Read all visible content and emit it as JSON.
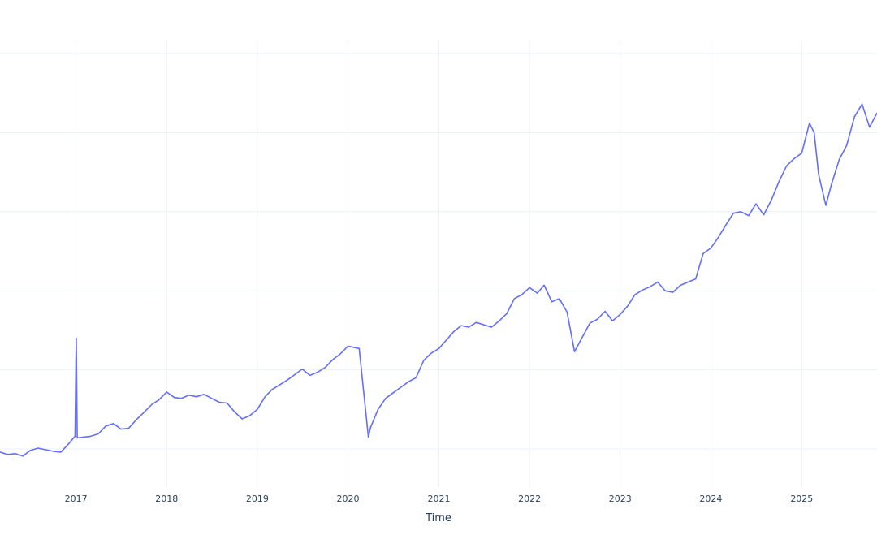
{
  "chart_data": {
    "type": "line",
    "title": "",
    "xlabel": "Time",
    "ylabel": "",
    "grid": true,
    "legend": "none",
    "line_color": "#636efa",
    "xlim": [
      "2016-03-01",
      "2025-10-31"
    ],
    "ylim": [
      0,
      100
    ],
    "x_ticks": [
      {
        "date": "2017-01-01",
        "label": "2017"
      },
      {
        "date": "2018-01-01",
        "label": "2018"
      },
      {
        "date": "2019-01-01",
        "label": "2019"
      },
      {
        "date": "2020-01-01",
        "label": "2020"
      },
      {
        "date": "2021-01-01",
        "label": "2021"
      },
      {
        "date": "2022-01-01",
        "label": "2022"
      },
      {
        "date": "2023-01-01",
        "label": "2023"
      },
      {
        "date": "2024-01-01",
        "label": "2024"
      },
      {
        "date": "2025-01-01",
        "label": "2025"
      }
    ],
    "y_gridlines": [
      50,
      60,
      70,
      80,
      90,
      100
    ],
    "series": [
      {
        "x": [
          "2016-03-01",
          "2016-04-01",
          "2016-05-01",
          "2016-06-01",
          "2016-07-01",
          "2016-08-01",
          "2016-09-01",
          "2016-10-01",
          "2016-11-01",
          "2016-12-01",
          "2016-12-28",
          "2017-01-02",
          "2017-01-06",
          "2017-02-01",
          "2017-03-01",
          "2017-04-01",
          "2017-05-01",
          "2017-06-01",
          "2017-07-01",
          "2017-08-01",
          "2017-09-01",
          "2017-10-01",
          "2017-11-01",
          "2017-12-01",
          "2018-01-01",
          "2018-02-01",
          "2018-03-01",
          "2018-04-01",
          "2018-05-01",
          "2018-06-01",
          "2018-07-01",
          "2018-08-01",
          "2018-09-01",
          "2018-10-01",
          "2018-11-01",
          "2018-12-01",
          "2019-01-01",
          "2019-02-01",
          "2019-03-01",
          "2019-04-01",
          "2019-05-01",
          "2019-06-01",
          "2019-07-01",
          "2019-08-01",
          "2019-09-01",
          "2019-10-01",
          "2019-11-01",
          "2019-12-01",
          "2020-01-01",
          "2020-02-01",
          "2020-02-15",
          "2020-03-10",
          "2020-03-23",
          "2020-04-01",
          "2020-05-01",
          "2020-06-01",
          "2020-07-01",
          "2020-08-01",
          "2020-09-01",
          "2020-10-01",
          "2020-11-01",
          "2020-12-01",
          "2021-01-01",
          "2021-02-01",
          "2021-03-01",
          "2021-04-01",
          "2021-05-01",
          "2021-06-01",
          "2021-07-01",
          "2021-08-01",
          "2021-09-01",
          "2021-10-01",
          "2021-11-01",
          "2021-12-01",
          "2022-01-01",
          "2022-02-01",
          "2022-03-01",
          "2022-04-01",
          "2022-05-01",
          "2022-06-01",
          "2022-07-01",
          "2022-08-01",
          "2022-09-01",
          "2022-10-01",
          "2022-11-01",
          "2022-12-01",
          "2023-01-01",
          "2023-02-01",
          "2023-03-01",
          "2023-04-01",
          "2023-05-01",
          "2023-06-01",
          "2023-07-01",
          "2023-08-01",
          "2023-09-01",
          "2023-10-01",
          "2023-11-01",
          "2023-12-01",
          "2024-01-01",
          "2024-02-01",
          "2024-03-01",
          "2024-04-01",
          "2024-05-01",
          "2024-06-01",
          "2024-07-01",
          "2024-08-01",
          "2024-09-01",
          "2024-10-01",
          "2024-11-01",
          "2024-12-01",
          "2025-01-01",
          "2025-02-01",
          "2025-02-20",
          "2025-03-10",
          "2025-04-08",
          "2025-05-01",
          "2025-06-01",
          "2025-07-01",
          "2025-08-01",
          "2025-09-01",
          "2025-10-01",
          "2025-10-31"
        ],
        "y": [
          49.6,
          49.3,
          49.4,
          49.1,
          49.8,
          50.1,
          49.9,
          49.7,
          49.6,
          50.6,
          51.6,
          64.0,
          51.4,
          51.5,
          51.6,
          51.9,
          52.9,
          53.2,
          52.5,
          52.6,
          53.7,
          54.6,
          55.6,
          56.2,
          57.2,
          56.5,
          56.4,
          56.8,
          56.6,
          56.9,
          56.4,
          55.9,
          55.8,
          54.7,
          53.8,
          54.2,
          55.0,
          56.6,
          57.5,
          58.1,
          58.7,
          59.4,
          60.1,
          59.3,
          59.7,
          60.3,
          61.3,
          62.0,
          63.0,
          62.8,
          62.7,
          55.5,
          51.5,
          52.7,
          55.0,
          56.4,
          57.1,
          57.8,
          58.5,
          59.0,
          61.2,
          62.1,
          62.7,
          63.8,
          64.8,
          65.6,
          65.4,
          66.0,
          65.7,
          65.4,
          66.2,
          67.1,
          69.0,
          69.5,
          70.4,
          69.7,
          70.7,
          68.6,
          69.0,
          67.3,
          62.3,
          64.1,
          65.9,
          66.4,
          67.4,
          66.2,
          67.0,
          68.1,
          69.5,
          70.1,
          70.5,
          71.1,
          70.0,
          69.8,
          70.7,
          71.1,
          71.5,
          74.7,
          75.4,
          76.8,
          78.3,
          79.8,
          80.0,
          79.5,
          81.0,
          79.6,
          81.5,
          83.8,
          85.8,
          86.7,
          87.4,
          91.2,
          90.0,
          84.7,
          80.8,
          83.5,
          86.6,
          88.4,
          92.0,
          93.6,
          90.7,
          92.5
        ]
      }
    ]
  }
}
